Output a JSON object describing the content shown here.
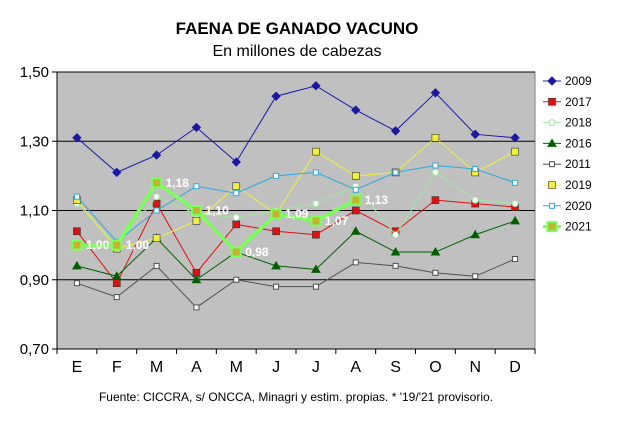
{
  "chart_data": {
    "type": "line",
    "title": "FAENA DE GANADO VACUNO",
    "subtitle": "En millones de cabezas",
    "categories": [
      "E",
      "F",
      "M",
      "A",
      "M",
      "J",
      "J",
      "A",
      "S",
      "O",
      "N",
      "D"
    ],
    "y_tick_labels": [
      "0,70",
      "0,90",
      "1,10",
      "1,30",
      "1,50"
    ],
    "ylim": [
      0.7,
      1.5
    ],
    "grid": true,
    "legend_position": "right",
    "source": "Fuente: CICCRA, s/ ONCCA, Minagri y estim. propias. * '19/'21 provisorio.",
    "series": [
      {
        "name": "2009",
        "color": "#1a1aa0",
        "marker": "diamond",
        "values": [
          1.31,
          1.21,
          1.26,
          1.34,
          1.24,
          1.43,
          1.46,
          1.39,
          1.33,
          1.44,
          1.32,
          1.31
        ]
      },
      {
        "name": "2017",
        "color": "#e01010",
        "marker": "square",
        "values": [
          1.04,
          0.89,
          1.12,
          0.92,
          1.06,
          1.04,
          1.03,
          1.1,
          1.04,
          1.13,
          1.12,
          1.11
        ]
      },
      {
        "name": "2018",
        "color": "#a0e8a0",
        "marker": "circle",
        "values": [
          1.12,
          1.0,
          1.14,
          1.09,
          1.08,
          1.1,
          1.12,
          1.17,
          1.03,
          1.21,
          1.13,
          1.12
        ]
      },
      {
        "name": "2016",
        "color": "#006000",
        "marker": "triangle",
        "values": [
          0.94,
          0.91,
          1.02,
          0.9,
          0.98,
          0.94,
          0.93,
          1.04,
          0.98,
          0.98,
          1.03,
          1.07
        ]
      },
      {
        "name": "2011",
        "color": "#505050",
        "marker": "square-small",
        "values": [
          0.89,
          0.85,
          0.94,
          0.82,
          0.9,
          0.88,
          0.88,
          0.95,
          0.94,
          0.92,
          0.91,
          0.96
        ]
      },
      {
        "name": "2019",
        "color": "#f0f040",
        "marker": "square",
        "values": [
          1.13,
          0.99,
          1.02,
          1.07,
          1.17,
          1.09,
          1.27,
          1.2,
          1.21,
          1.31,
          1.21,
          1.27
        ]
      },
      {
        "name": "2020",
        "color": "#30a8d8",
        "marker": "square-small",
        "values": [
          1.14,
          1.01,
          1.1,
          1.17,
          1.15,
          1.2,
          1.21,
          1.16,
          1.21,
          1.23,
          1.22,
          1.18
        ]
      },
      {
        "name": "2021",
        "color": "#7cff5a",
        "marker": "square-big",
        "values": [
          1.0,
          1.0,
          1.18,
          1.1,
          0.98,
          1.09,
          1.07,
          1.13,
          null,
          null,
          null,
          null
        ]
      }
    ],
    "data_labels": [
      {
        "series": "2021",
        "index": 0,
        "text": "1,00"
      },
      {
        "series": "2021",
        "index": 1,
        "text": "1,00"
      },
      {
        "series": "2021",
        "index": 2,
        "text": "1,18"
      },
      {
        "series": "2021",
        "index": 3,
        "text": "1,10"
      },
      {
        "series": "2021",
        "index": 4,
        "text": "0,98"
      },
      {
        "series": "2021",
        "index": 5,
        "text": "1,09"
      },
      {
        "series": "2021",
        "index": 6,
        "text": "1,07"
      },
      {
        "series": "2021",
        "index": 7,
        "text": "1,13"
      }
    ]
  }
}
